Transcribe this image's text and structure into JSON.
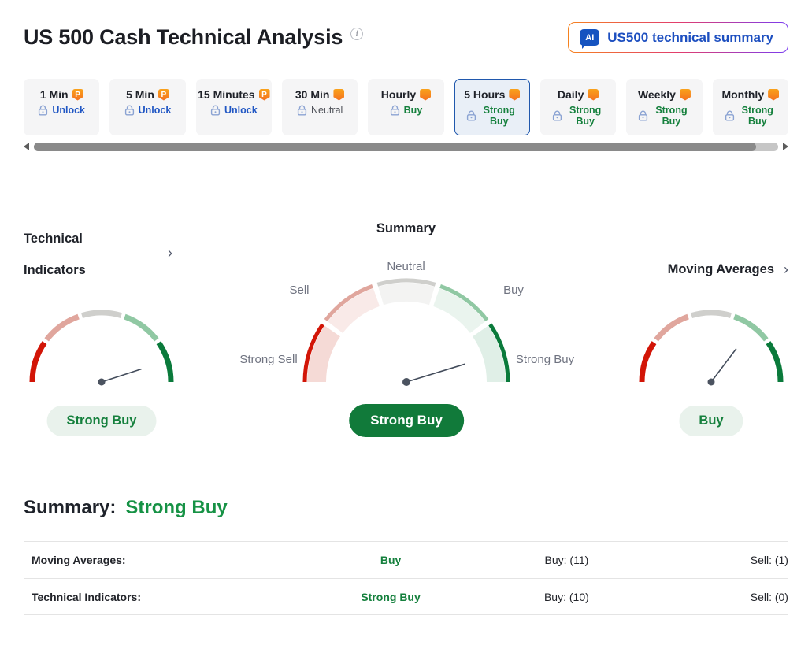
{
  "header": {
    "title": "US 500 Cash Technical Analysis",
    "info_icon": "i",
    "ai_badge": "AI",
    "ai_button_label": "US500 technical summary"
  },
  "pro_badge": "P",
  "timeframes": [
    {
      "label": "1 Min",
      "status": "Unlock",
      "locked": true
    },
    {
      "label": "5 Min",
      "status": "Unlock",
      "locked": true
    },
    {
      "label": "15 Minutes",
      "status": "Unlock",
      "locked": true
    },
    {
      "label": "30 Min",
      "status": "Neutral",
      "tone": "neutral"
    },
    {
      "label": "Hourly",
      "status": "Buy",
      "tone": "positive"
    },
    {
      "label": "5 Hours",
      "status": "Strong Buy",
      "tone": "positive",
      "selected": true
    },
    {
      "label": "Daily",
      "status": "Strong Buy",
      "tone": "positive"
    },
    {
      "label": "Weekly",
      "status": "Strong Buy",
      "tone": "positive"
    },
    {
      "label": "Monthly",
      "status": "Strong Buy",
      "tone": "positive"
    }
  ],
  "gauge_section": {
    "left": {
      "title_line1": "Technical",
      "title_line2": "Indicators",
      "chevron": "›",
      "pill": "Strong Buy"
    },
    "center": {
      "title": "Summary",
      "pill": "Strong Buy",
      "labels": {
        "neutral": "Neutral",
        "sell": "Sell",
        "buy": "Buy",
        "strong_sell": "Strong Sell",
        "strong_buy": "Strong Buy"
      }
    },
    "right": {
      "title": "Moving Averages",
      "chevron": "›",
      "pill": "Buy"
    }
  },
  "chart_data": {
    "type": "gauge",
    "scale": [
      "Strong Sell",
      "Sell",
      "Neutral",
      "Buy",
      "Strong Buy"
    ],
    "gauges": [
      {
        "name": "Technical Indicators",
        "signal": "Strong Buy",
        "needle_deg": 18
      },
      {
        "name": "Summary",
        "signal": "Strong Buy",
        "needle_deg": 17
      },
      {
        "name": "Moving Averages",
        "signal": "Buy",
        "needle_deg": 53
      }
    ]
  },
  "summary_section": {
    "heading": "Summary:",
    "value": "Strong Buy",
    "rows": [
      {
        "label": "Moving Averages:",
        "signal": "Buy",
        "buy_count": "Buy: (11)",
        "sell_count": "Sell: (1)"
      },
      {
        "label": "Technical Indicators:",
        "signal": "Strong Buy",
        "buy_count": "Buy: (10)",
        "sell_count": "Sell: (0)"
      }
    ]
  },
  "colors": {
    "green": "#15803d",
    "heading_green": "#169245",
    "pill_solid_bg": "#117a3a",
    "pill_light_bg": "#e9f2ec",
    "red": "#d21507",
    "unlock_blue": "#2157c4",
    "selected_tab_border": "#2058ad",
    "selected_tab_bg": "#e9eff7",
    "pro_orange": "#f68a1e",
    "segments_outer": [
      "#d21507",
      "#e0a69d",
      "#cfcfcc",
      "#90c8a3",
      "#0a7a3b"
    ],
    "segments_band": [
      "#f5dad6",
      "#f9eae8",
      "#f3f3f2",
      "#eaf4ee",
      "#e0efe7"
    ],
    "needle": "#434c5b",
    "needle_dot": "#4b5360"
  }
}
